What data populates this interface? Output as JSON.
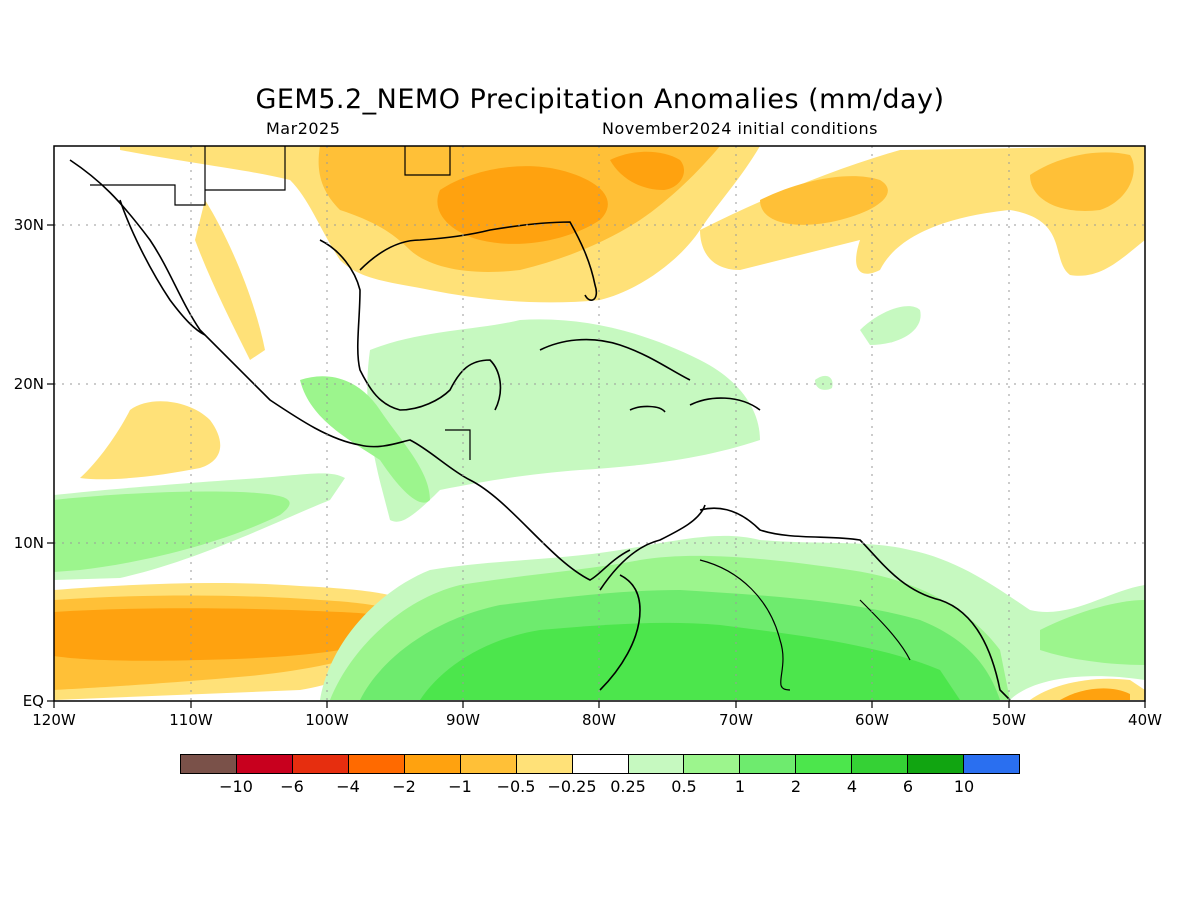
{
  "title": "GEM5.2_NEMO Precipitation Anomalies (mm/day)",
  "subtitle_left": "Mar2025",
  "subtitle_right": "November2024 initial conditions",
  "x_ticks": [
    "120W",
    "110W",
    "100W",
    "90W",
    "80W",
    "70W",
    "60W",
    "50W",
    "40W"
  ],
  "y_ticks": [
    "30N",
    "20N",
    "10N",
    "EQ"
  ],
  "colorbar": {
    "colors": [
      "#7a5149",
      "#c8001e",
      "#e62e0f",
      "#ff6a00",
      "#ffa20f",
      "#ffc037",
      "#ffe178",
      "#ffffff",
      "#c6f9c0",
      "#9cf58d",
      "#6eeb6e",
      "#4ce64c",
      "#35d135",
      "#11a511",
      "#2a6ff0"
    ],
    "labels": [
      "−10",
      "−6",
      "−4",
      "−2",
      "−1",
      "−0.5",
      "−0.25",
      "0.25",
      "0.5",
      "1",
      "2",
      "4",
      "6",
      "10"
    ]
  },
  "chart_data": {
    "type": "heatmap",
    "title": "GEM5.2_NEMO Precipitation Anomalies (mm/day)",
    "subtitle": "Mar2025 — November2024 initial conditions",
    "x_range_lon": [
      -120,
      -40
    ],
    "y_range_lat": [
      0,
      35
    ],
    "grid": true,
    "levels": [
      -10,
      -6,
      -4,
      -2,
      -1,
      -0.5,
      -0.25,
      0.25,
      0.5,
      1,
      2,
      4,
      6,
      10
    ],
    "regions": [
      {
        "area": "Gulf coast / SE United States",
        "anomaly_range": [
          -2,
          -0.5
        ]
      },
      {
        "area": "Eastern Pacific 0-7N, 120W-94W",
        "anomaly_range": [
          -2,
          -0.5
        ]
      },
      {
        "area": "Eastern Pacific 8-12N, 120W-100W",
        "anomaly_range": [
          0.25,
          1
        ]
      },
      {
        "area": "Northern South America",
        "anomaly_range": [
          0.5,
          4
        ]
      },
      {
        "area": "Central Caribbean",
        "anomaly_range": [
          0.25,
          0.5
        ]
      },
      {
        "area": "Subtropical Atlantic 25-35N",
        "anomaly_range": [
          -1,
          -0.25
        ]
      },
      {
        "area": "Equatorial Atlantic 0-3N, 50W-40W",
        "anomaly_range": [
          -1,
          -0.25
        ]
      }
    ]
  }
}
